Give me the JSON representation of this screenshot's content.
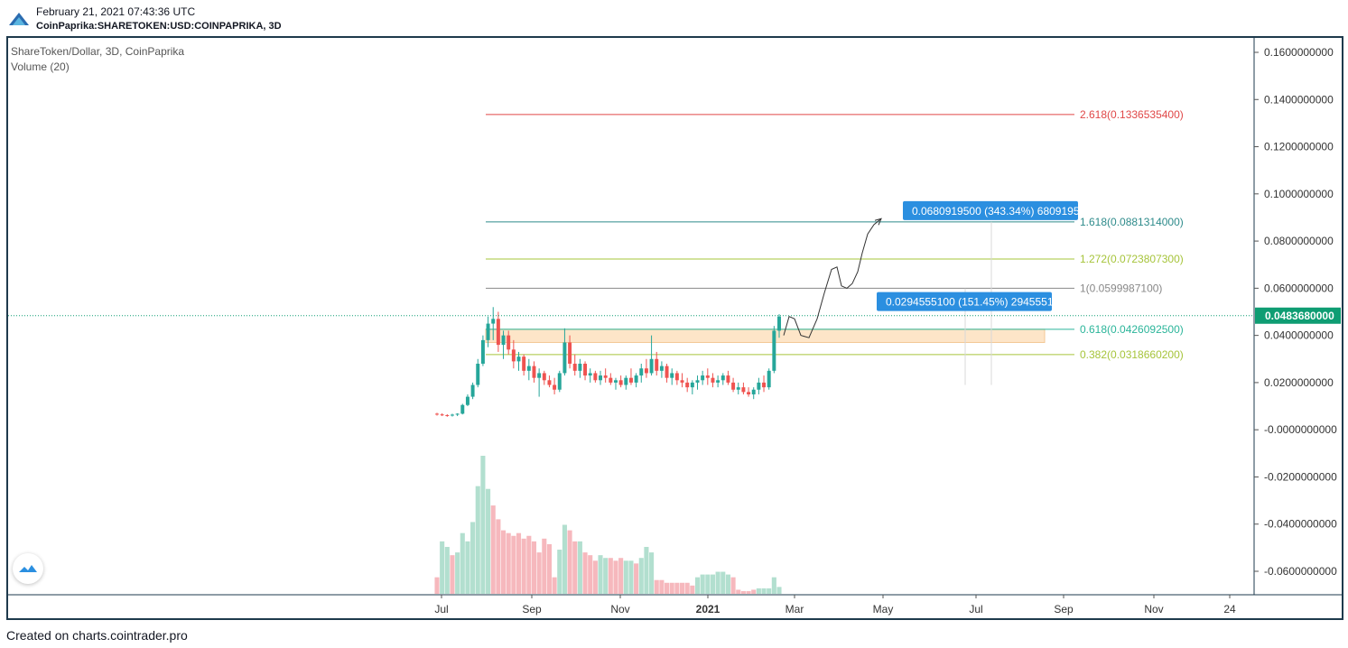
{
  "header": {
    "date": "February 21, 2021 07:43:36 UTC",
    "symbol": "CoinPaprika:SHARETOKEN:USD:COINPAPRIKA, 3D"
  },
  "legend": {
    "title": "ShareToken/Dollar, 3D, CoinPaprika",
    "volume": "Volume (20)"
  },
  "footer": {
    "text": "Created on charts.cointrader.pro"
  },
  "colors": {
    "up": "#26a69a",
    "down": "#ef5350",
    "up_volume": "#b2dfcf",
    "down_volume": "#f6b8bd",
    "fib_2618": "#e04848",
    "fib_1618": "#2e8b8b",
    "fib_1272": "#a6c43a",
    "fib_1": "#888888",
    "fib_0618": "#2bb59a",
    "fib_0382": "#a6c43a",
    "zone": "#fde5c8",
    "label_bg": "#2b8fe0",
    "price_tag": "#0f9d73",
    "frame": "#1e3a4c"
  },
  "chart_data": {
    "type": "candlestick",
    "title": "ShareToken/Dollar, 3D, CoinPaprika",
    "x_ticks": [
      "Jul",
      "Sep",
      "Nov",
      "2021",
      "Mar",
      "May",
      "Jul",
      "Sep",
      "Nov",
      "24"
    ],
    "y_ticks": [
      "0.1600000000",
      "0.1400000000",
      "0.1200000000",
      "0.1000000000",
      "0.0800000000",
      "0.0600000000",
      "0.0400000000",
      "0.0200000000",
      "-0.0000000000",
      "-0.0200000000",
      "-0.0400000000",
      "-0.0600000000"
    ],
    "y_tick_values": [
      0.16,
      0.14,
      0.12,
      0.1,
      0.08,
      0.06,
      0.04,
      0.02,
      0.0,
      -0.02,
      -0.04,
      -0.06
    ],
    "ylim": [
      -0.07,
      0.163
    ],
    "current_price": "0.0483680000",
    "current_price_value": 0.048368,
    "fib_levels": [
      {
        "ratio": 2.618,
        "value": 0.13365354,
        "label": "2.618(0.1336535400)",
        "color_key": "fib_2618"
      },
      {
        "ratio": 1.618,
        "value": 0.0881314,
        "label": "1.618(0.0881314000)",
        "color_key": "fib_1618"
      },
      {
        "ratio": 1.272,
        "value": 0.07238073,
        "label": "1.272(0.0723807300)",
        "color_key": "fib_1272"
      },
      {
        "ratio": 1,
        "value": 0.05999871,
        "label": "1(0.0599987100)",
        "color_key": "fib_1"
      },
      {
        "ratio": 0.618,
        "value": 0.04260925,
        "label": "0.618(0.0426092500)",
        "color_key": "fib_0618"
      },
      {
        "ratio": 0.382,
        "value": 0.03186602,
        "label": "0.382(0.0318660200)",
        "color_key": "fib_0382"
      }
    ],
    "zone": {
      "top": 0.0426,
      "bottom": 0.037
    },
    "annotations": [
      {
        "text": "0.0680919500 (343.34%) 6809195",
        "price": 0.0881
      },
      {
        "text": "0.0294555100 (151.45%) 2945551",
        "price": 0.0599
      }
    ],
    "candles": [
      [
        0.0068,
        0.0072,
        0.006,
        0.0065
      ],
      [
        0.0065,
        0.007,
        0.0058,
        0.0062
      ],
      [
        0.0062,
        0.0066,
        0.0055,
        0.006
      ],
      [
        0.006,
        0.0068,
        0.0056,
        0.0064
      ],
      [
        0.0064,
        0.007,
        0.0058,
        0.0068
      ],
      [
        0.0068,
        0.011,
        0.0065,
        0.0105
      ],
      [
        0.0105,
        0.015,
        0.01,
        0.014
      ],
      [
        0.014,
        0.02,
        0.013,
        0.019
      ],
      [
        0.019,
        0.03,
        0.018,
        0.028
      ],
      [
        0.028,
        0.04,
        0.027,
        0.038
      ],
      [
        0.038,
        0.048,
        0.035,
        0.045
      ],
      [
        0.045,
        0.052,
        0.038,
        0.047
      ],
      [
        0.047,
        0.05,
        0.033,
        0.036
      ],
      [
        0.036,
        0.042,
        0.03,
        0.04
      ],
      [
        0.04,
        0.042,
        0.032,
        0.034
      ],
      [
        0.034,
        0.038,
        0.026,
        0.029
      ],
      [
        0.029,
        0.033,
        0.025,
        0.031
      ],
      [
        0.031,
        0.032,
        0.023,
        0.025
      ],
      [
        0.025,
        0.03,
        0.021,
        0.027
      ],
      [
        0.027,
        0.029,
        0.02,
        0.022
      ],
      [
        0.022,
        0.026,
        0.014,
        0.024
      ],
      [
        0.024,
        0.025,
        0.019,
        0.021
      ],
      [
        0.021,
        0.023,
        0.018,
        0.019
      ],
      [
        0.019,
        0.022,
        0.015,
        0.017
      ],
      [
        0.017,
        0.025,
        0.016,
        0.024
      ],
      [
        0.024,
        0.043,
        0.023,
        0.037
      ],
      [
        0.037,
        0.04,
        0.026,
        0.028
      ],
      [
        0.028,
        0.032,
        0.023,
        0.025
      ],
      [
        0.025,
        0.03,
        0.022,
        0.028
      ],
      [
        0.028,
        0.029,
        0.021,
        0.023
      ],
      [
        0.023,
        0.026,
        0.02,
        0.024
      ],
      [
        0.024,
        0.025,
        0.02,
        0.021
      ],
      [
        0.021,
        0.025,
        0.019,
        0.023
      ],
      [
        0.023,
        0.026,
        0.02,
        0.022
      ],
      [
        0.022,
        0.024,
        0.019,
        0.02
      ],
      [
        0.02,
        0.022,
        0.017,
        0.021
      ],
      [
        0.021,
        0.023,
        0.018,
        0.019
      ],
      [
        0.019,
        0.023,
        0.017,
        0.022
      ],
      [
        0.022,
        0.026,
        0.019,
        0.02
      ],
      [
        0.02,
        0.024,
        0.018,
        0.023
      ],
      [
        0.023,
        0.028,
        0.02,
        0.026
      ],
      [
        0.026,
        0.03,
        0.022,
        0.024
      ],
      [
        0.024,
        0.04,
        0.023,
        0.03
      ],
      [
        0.03,
        0.033,
        0.023,
        0.025
      ],
      [
        0.025,
        0.029,
        0.022,
        0.027
      ],
      [
        0.027,
        0.028,
        0.02,
        0.022
      ],
      [
        0.022,
        0.026,
        0.019,
        0.024
      ],
      [
        0.024,
        0.025,
        0.019,
        0.021
      ],
      [
        0.021,
        0.024,
        0.018,
        0.02
      ],
      [
        0.02,
        0.022,
        0.016,
        0.018
      ],
      [
        0.018,
        0.021,
        0.015,
        0.02
      ],
      [
        0.02,
        0.023,
        0.017,
        0.021
      ],
      [
        0.021,
        0.025,
        0.019,
        0.023
      ],
      [
        0.023,
        0.026,
        0.019,
        0.022
      ],
      [
        0.022,
        0.024,
        0.018,
        0.02
      ],
      [
        0.02,
        0.023,
        0.018,
        0.021
      ],
      [
        0.021,
        0.024,
        0.019,
        0.023
      ],
      [
        0.023,
        0.025,
        0.019,
        0.02
      ],
      [
        0.02,
        0.022,
        0.016,
        0.017
      ],
      [
        0.017,
        0.02,
        0.015,
        0.018
      ],
      [
        0.018,
        0.02,
        0.015,
        0.016
      ],
      [
        0.016,
        0.018,
        0.014,
        0.015
      ],
      [
        0.015,
        0.018,
        0.013,
        0.017
      ],
      [
        0.017,
        0.022,
        0.015,
        0.02
      ],
      [
        0.02,
        0.023,
        0.016,
        0.018
      ],
      [
        0.018,
        0.026,
        0.017,
        0.025
      ],
      [
        0.025,
        0.044,
        0.024,
        0.042
      ],
      [
        0.042,
        0.049,
        0.039,
        0.048
      ]
    ],
    "volumes": [
      {
        "v": 0.12,
        "up": false
      },
      {
        "v": 0.38,
        "up": true
      },
      {
        "v": 0.34,
        "up": true
      },
      {
        "v": 0.28,
        "up": false
      },
      {
        "v": 0.3,
        "up": true
      },
      {
        "v": 0.44,
        "up": true
      },
      {
        "v": 0.38,
        "up": true
      },
      {
        "v": 0.52,
        "up": true
      },
      {
        "v": 0.78,
        "up": true
      },
      {
        "v": 1.0,
        "up": true
      },
      {
        "v": 0.76,
        "up": true
      },
      {
        "v": 0.64,
        "up": false
      },
      {
        "v": 0.54,
        "up": false
      },
      {
        "v": 0.46,
        "up": false
      },
      {
        "v": 0.44,
        "up": false
      },
      {
        "v": 0.42,
        "up": false
      },
      {
        "v": 0.44,
        "up": false
      },
      {
        "v": 0.4,
        "up": false
      },
      {
        "v": 0.42,
        "up": false
      },
      {
        "v": 0.38,
        "up": false
      },
      {
        "v": 0.3,
        "up": false
      },
      {
        "v": 0.4,
        "up": false
      },
      {
        "v": 0.36,
        "up": false
      },
      {
        "v": 0.12,
        "up": false
      },
      {
        "v": 0.32,
        "up": true
      },
      {
        "v": 0.5,
        "up": true
      },
      {
        "v": 0.46,
        "up": false
      },
      {
        "v": 0.38,
        "up": false
      },
      {
        "v": 0.38,
        "up": true
      },
      {
        "v": 0.3,
        "up": false
      },
      {
        "v": 0.28,
        "up": false
      },
      {
        "v": 0.24,
        "up": false
      },
      {
        "v": 0.28,
        "up": true
      },
      {
        "v": 0.26,
        "up": true
      },
      {
        "v": 0.26,
        "up": false
      },
      {
        "v": 0.24,
        "up": false
      },
      {
        "v": 0.26,
        "up": false
      },
      {
        "v": 0.24,
        "up": true
      },
      {
        "v": 0.24,
        "up": true
      },
      {
        "v": 0.22,
        "up": false
      },
      {
        "v": 0.26,
        "up": true
      },
      {
        "v": 0.34,
        "up": true
      },
      {
        "v": 0.3,
        "up": true
      },
      {
        "v": 0.1,
        "up": false
      },
      {
        "v": 0.1,
        "up": false
      },
      {
        "v": 0.08,
        "up": false
      },
      {
        "v": 0.08,
        "up": false
      },
      {
        "v": 0.08,
        "up": false
      },
      {
        "v": 0.08,
        "up": false
      },
      {
        "v": 0.08,
        "up": false
      },
      {
        "v": 0.06,
        "up": false
      },
      {
        "v": 0.12,
        "up": true
      },
      {
        "v": 0.14,
        "up": true
      },
      {
        "v": 0.14,
        "up": true
      },
      {
        "v": 0.14,
        "up": true
      },
      {
        "v": 0.16,
        "up": true
      },
      {
        "v": 0.16,
        "up": true
      },
      {
        "v": 0.14,
        "up": true
      },
      {
        "v": 0.12,
        "up": false
      },
      {
        "v": 0.03,
        "up": false
      },
      {
        "v": 0.02,
        "up": false
      },
      {
        "v": 0.02,
        "up": false
      },
      {
        "v": 0.03,
        "up": false
      },
      {
        "v": 0.04,
        "up": true
      },
      {
        "v": 0.04,
        "up": true
      },
      {
        "v": 0.04,
        "up": true
      },
      {
        "v": 0.12,
        "up": true
      },
      {
        "v": 0.05,
        "up": true
      }
    ]
  }
}
